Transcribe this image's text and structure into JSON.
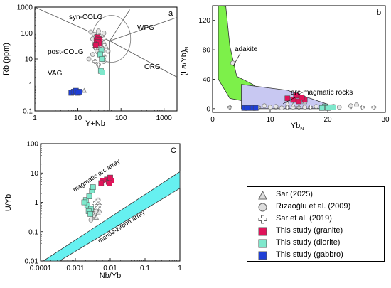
{
  "colors": {
    "granite": "#e0145a",
    "diorite": "#7fe8cc",
    "gabbro": "#1f3fd6",
    "reference": "#888888",
    "adakite_field": "#7df04a",
    "arc_field": "#c8c8f2",
    "mantle_zircon_field": "#66f0f0"
  },
  "legend": {
    "items": [
      {
        "symbol": "triangle",
        "label": "Sar (2025)"
      },
      {
        "symbol": "circle",
        "label": "Rızaoğlu et al. (2009)"
      },
      {
        "symbol": "cross",
        "label": "Sar et al. (2019)"
      },
      {
        "symbol": "square-granite",
        "label": "This study (granite)"
      },
      {
        "symbol": "square-diorite",
        "label": "This study (diorite)"
      },
      {
        "symbol": "square-gabbro",
        "label": "This study (gabbro)"
      }
    ]
  },
  "chart_data": [
    {
      "panel": "a",
      "type": "scatter",
      "xlabel": "Y+Nb",
      "ylabel": "Rb (ppm)",
      "xscale": "log",
      "yscale": "log",
      "xlim": [
        1,
        2000
      ],
      "ylim": [
        0.1,
        1000
      ],
      "xticks": [
        "1",
        "10",
        "100",
        "1000"
      ],
      "yticks": [
        "0.1",
        "1",
        "10",
        "100",
        "1000"
      ],
      "fields": [
        "syn-COLG",
        "WPG",
        "post-COLG",
        "VAG",
        "ORG"
      ],
      "series": [
        {
          "group": "granite",
          "points": [
            [
              28,
              70
            ],
            [
              30,
              60
            ],
            [
              27,
              50
            ],
            [
              32,
              55
            ],
            [
              29,
              45
            ],
            [
              31,
              40
            ],
            [
              26,
              35
            ]
          ]
        },
        {
          "group": "diorite",
          "points": [
            [
              35,
              22
            ],
            [
              33,
              15
            ],
            [
              36,
              10
            ],
            [
              34,
              3.5
            ],
            [
              37,
              3
            ]
          ]
        },
        {
          "group": "gabbro",
          "points": [
            [
              7,
              0.5
            ],
            [
              8,
              0.55
            ],
            [
              9,
              0.6
            ],
            [
              10,
              0.5
            ],
            [
              11,
              0.55
            ]
          ]
        },
        {
          "group": "sar2019",
          "points": [
            [
              28,
              90
            ],
            [
              32,
              80
            ],
            [
              40,
              60
            ],
            [
              35,
              45
            ],
            [
              24,
              30
            ],
            [
              42,
              12
            ],
            [
              50,
              20
            ],
            [
              25,
              8
            ],
            [
              30,
              6
            ],
            [
              38,
              25
            ]
          ]
        },
        {
          "group": "rizaoglu2009",
          "points": [
            [
              20,
              110
            ],
            [
              24,
              90
            ],
            [
              30,
              120
            ],
            [
              26,
              75
            ],
            [
              40,
              100
            ],
            [
              22,
              60
            ],
            [
              34,
              35
            ],
            [
              28,
              20
            ],
            [
              22,
              15
            ],
            [
              40,
              8
            ],
            [
              18,
              10
            ]
          ]
        },
        {
          "group": "sar2025",
          "points": [
            [
              25,
              40
            ],
            [
              30,
              28
            ],
            [
              40,
              45
            ],
            [
              45,
              30
            ],
            [
              14,
              0.6
            ]
          ]
        }
      ]
    },
    {
      "panel": "b",
      "type": "scatter",
      "xlabel": "Yb_N",
      "ylabel": "(La/Yb)_N",
      "xlim": [
        0,
        30
      ],
      "ylim": [
        -5,
        140
      ],
      "xticks": [
        "0",
        "10",
        "20",
        "30"
      ],
      "yticks": [
        "0",
        "40",
        "80",
        "120"
      ],
      "fields": [
        "adakite",
        "arc-magmatic rocks"
      ],
      "series": [
        {
          "group": "granite",
          "points": [
            [
              13,
              14
            ],
            [
              14,
              12
            ],
            [
              14.5,
              18
            ],
            [
              15,
              10
            ],
            [
              16,
              12
            ],
            [
              15.5,
              15
            ]
          ]
        },
        {
          "group": "diorite",
          "points": [
            [
              19.5,
              3
            ],
            [
              20,
              1
            ],
            [
              20.5,
              2
            ],
            [
              21,
              2
            ],
            [
              19,
              1
            ]
          ]
        },
        {
          "group": "gabbro",
          "points": [
            [
              5.5,
              1
            ],
            [
              6,
              1
            ],
            [
              7,
              1
            ],
            [
              7.5,
              1
            ]
          ]
        },
        {
          "group": "sar2019",
          "points": [
            [
              3,
              2
            ],
            [
              8,
              2
            ],
            [
              11,
              2
            ],
            [
              13,
              2
            ],
            [
              15,
              2
            ],
            [
              17,
              2
            ],
            [
              21,
              3
            ],
            [
              24,
              3
            ],
            [
              26,
              2
            ],
            [
              28,
              2
            ]
          ]
        },
        {
          "group": "rizaoglu2009",
          "points": [
            [
              3.5,
              62
            ],
            [
              9,
              4
            ],
            [
              10,
              2
            ],
            [
              11,
              3
            ],
            [
              12,
              1
            ],
            [
              14,
              2
            ],
            [
              16,
              2
            ],
            [
              18,
              3
            ],
            [
              22,
              2
            ],
            [
              24,
              4
            ],
            [
              25,
              5
            ]
          ]
        },
        {
          "group": "sar2025",
          "points": [
            [
              13,
              7
            ],
            [
              14,
              5
            ],
            [
              16,
              9
            ]
          ]
        }
      ]
    },
    {
      "panel": "C",
      "type": "scatter",
      "xlabel": "Nb/Yb",
      "ylabel": "U/Yb",
      "xscale": "log",
      "yscale": "log",
      "xlim": [
        0.0001,
        1
      ],
      "ylim": [
        0.01,
        100
      ],
      "xticks": [
        "0.0001",
        "0.001",
        "0.01",
        "0.1",
        "1"
      ],
      "yticks": [
        "0.01",
        "0.1",
        "1",
        "10",
        "100"
      ],
      "fields": [
        "magmatic arc array",
        "mantle-zircon array"
      ],
      "series": [
        {
          "group": "granite",
          "points": [
            [
              0.008,
              6
            ],
            [
              0.009,
              5
            ],
            [
              0.01,
              7
            ],
            [
              0.011,
              5.5
            ],
            [
              0.0095,
              4.5
            ],
            [
              0.006,
              5.5
            ],
            [
              0.0055,
              4.5
            ]
          ]
        },
        {
          "group": "diorite",
          "points": [
            [
              0.002,
              1.2
            ],
            [
              0.0022,
              0.8
            ],
            [
              0.0025,
              1.6
            ],
            [
              0.0028,
              0.6
            ],
            [
              0.0024,
              0.5
            ],
            [
              0.003,
              2.5
            ],
            [
              0.0032,
              3.3
            ],
            [
              0.0018,
              1.0
            ],
            [
              0.0027,
              0.4
            ]
          ]
        },
        {
          "group": "sar2019",
          "points": [
            [
              0.0035,
              0.9
            ],
            [
              0.004,
              0.6
            ],
            [
              0.0045,
              1.2
            ],
            [
              0.005,
              0.8
            ]
          ]
        },
        {
          "group": "rizaoglu2009",
          "points": [
            [
              0.003,
              0.3
            ],
            [
              0.0035,
              0.4
            ],
            [
              0.004,
              0.5
            ],
            [
              0.0028,
              0.25
            ]
          ]
        },
        {
          "group": "sar2025",
          "points": [
            [
              0.0035,
              0.35
            ],
            [
              0.004,
              0.3
            ],
            [
              0.0045,
              0.45
            ],
            [
              0.005,
              0.5
            ],
            [
              0.0032,
              0.55
            ]
          ]
        }
      ]
    }
  ]
}
